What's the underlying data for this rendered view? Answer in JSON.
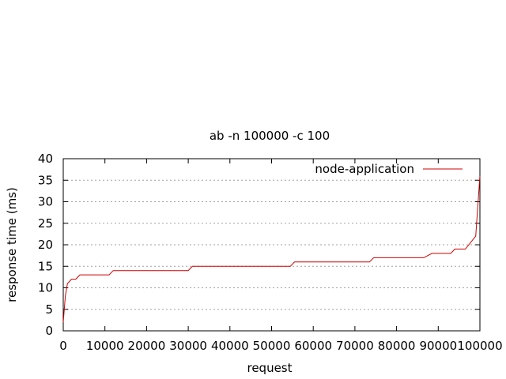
{
  "chart_data": {
    "type": "line",
    "title": "ab -n 100000 -c 100",
    "xlabel": "request",
    "ylabel": "response time (ms)",
    "xlim": [
      0,
      100000
    ],
    "ylim": [
      0,
      40
    ],
    "x_ticks": [
      0,
      10000,
      20000,
      30000,
      40000,
      50000,
      60000,
      70000,
      80000,
      90000,
      100000
    ],
    "y_ticks": [
      0,
      5,
      10,
      15,
      20,
      25,
      30,
      35,
      40
    ],
    "grid": "horizontal-dotted",
    "legend_position": "top-right",
    "series": [
      {
        "name": "node-application",
        "color": "#cc0000",
        "x": [
          0,
          500,
          1000,
          2000,
          3000,
          3500,
          4000,
          11000,
          12000,
          30000,
          31000,
          54500,
          55500,
          73500,
          74500,
          86500,
          88500,
          93000,
          94000,
          96500,
          99000,
          100000
        ],
        "y": [
          2,
          8,
          11,
          12,
          12,
          12.5,
          13,
          13,
          14,
          14,
          15,
          15,
          16,
          16,
          17,
          17,
          18,
          18,
          19,
          19,
          22,
          36
        ]
      }
    ]
  }
}
